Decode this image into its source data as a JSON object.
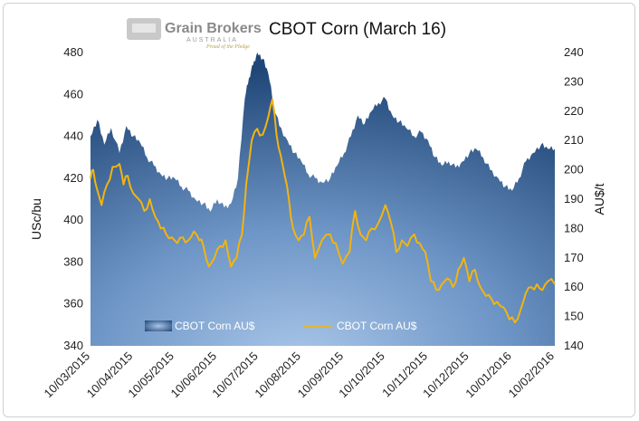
{
  "chart_data": {
    "type": "area+line",
    "title": "CBOT Corn (March 16)",
    "ylabel": "USc/bu",
    "y2label": "AU$/t",
    "ylim": [
      340,
      480
    ],
    "y2lim": [
      140,
      240
    ],
    "yticks": [
      340,
      360,
      380,
      400,
      420,
      440,
      460,
      480
    ],
    "y2ticks": [
      140,
      150,
      160,
      170,
      180,
      190,
      200,
      210,
      220,
      230,
      240
    ],
    "xticks": [
      "10/03/2015",
      "10/04/2015",
      "10/05/2015",
      "10/06/2015",
      "10/07/2015",
      "10/08/2015",
      "10/09/2015",
      "10/10/2015",
      "10/11/2015",
      "10/12/2015",
      "10/01/2016",
      "10/02/2016"
    ],
    "legend": {
      "position": "bottom-inside",
      "entries": [
        "CBOT Corn AU$",
        "CBOT Corn AU$"
      ]
    },
    "series": [
      {
        "name": "CBOT Corn AU$",
        "axis": "left",
        "kind": "area",
        "color": "#2e5f94",
        "points": [
          [
            "10/03/2015",
            440
          ],
          [
            "15/03/2015",
            448
          ],
          [
            "20/03/2015",
            436
          ],
          [
            "25/03/2015",
            444
          ],
          [
            "31/03/2015",
            432
          ],
          [
            "05/04/2015",
            445
          ],
          [
            "10/04/2015",
            440
          ],
          [
            "15/04/2015",
            437
          ],
          [
            "20/04/2015",
            430
          ],
          [
            "25/04/2015",
            426
          ],
          [
            "30/04/2015",
            422
          ],
          [
            "05/05/2015",
            420
          ],
          [
            "10/05/2015",
            420
          ],
          [
            "15/05/2015",
            416
          ],
          [
            "20/05/2015",
            414
          ],
          [
            "25/05/2015",
            410
          ],
          [
            "31/05/2015",
            408
          ],
          [
            "05/06/2015",
            404
          ],
          [
            "10/06/2015",
            410
          ],
          [
            "15/06/2015",
            406
          ],
          [
            "20/06/2015",
            408
          ],
          [
            "25/06/2015",
            420
          ],
          [
            "30/06/2015",
            458
          ],
          [
            "03/07/2015",
            468
          ],
          [
            "06/07/2015",
            474
          ],
          [
            "09/07/2015",
            480
          ],
          [
            "13/07/2015",
            477
          ],
          [
            "17/07/2015",
            470
          ],
          [
            "21/07/2015",
            455
          ],
          [
            "25/07/2015",
            445
          ],
          [
            "31/07/2015",
            438
          ],
          [
            "05/08/2015",
            432
          ],
          [
            "10/08/2015",
            428
          ],
          [
            "15/08/2015",
            422
          ],
          [
            "20/08/2015",
            420
          ],
          [
            "25/08/2015",
            418
          ],
          [
            "31/08/2015",
            420
          ],
          [
            "05/09/2015",
            426
          ],
          [
            "10/09/2015",
            432
          ],
          [
            "15/09/2015",
            440
          ],
          [
            "20/09/2015",
            450
          ],
          [
            "25/09/2015",
            446
          ],
          [
            "30/09/2015",
            452
          ],
          [
            "05/10/2015",
            456
          ],
          [
            "10/10/2015",
            458
          ],
          [
            "15/10/2015",
            450
          ],
          [
            "20/10/2015",
            447
          ],
          [
            "25/10/2015",
            444
          ],
          [
            "31/10/2015",
            440
          ],
          [
            "05/11/2015",
            442
          ],
          [
            "10/11/2015",
            438
          ],
          [
            "15/11/2015",
            430
          ],
          [
            "20/11/2015",
            426
          ],
          [
            "25/11/2015",
            428
          ],
          [
            "30/11/2015",
            425
          ],
          [
            "05/12/2015",
            428
          ],
          [
            "10/12/2015",
            432
          ],
          [
            "15/12/2015",
            434
          ],
          [
            "20/12/2015",
            430
          ],
          [
            "25/12/2015",
            424
          ],
          [
            "31/12/2015",
            420
          ],
          [
            "05/01/2016",
            416
          ],
          [
            "10/01/2016",
            414
          ],
          [
            "15/01/2016",
            420
          ],
          [
            "20/01/2016",
            428
          ],
          [
            "25/01/2016",
            432
          ],
          [
            "31/01/2016",
            436
          ],
          [
            "05/02/2016",
            434
          ],
          [
            "10/02/2016",
            434
          ]
        ]
      },
      {
        "name": "CBOT Corn AU$",
        "axis": "right",
        "kind": "line",
        "color": "#f2b411",
        "points": [
          [
            "10/03/2015",
            197
          ],
          [
            "12/03/2015",
            200
          ],
          [
            "15/03/2015",
            193
          ],
          [
            "18/03/2015",
            188
          ],
          [
            "22/03/2015",
            195
          ],
          [
            "26/03/2015",
            201
          ],
          [
            "31/03/2015",
            202
          ],
          [
            "03/04/2015",
            195
          ],
          [
            "06/04/2015",
            198
          ],
          [
            "10/04/2015",
            192
          ],
          [
            "14/04/2015",
            190
          ],
          [
            "18/04/2015",
            186
          ],
          [
            "22/04/2015",
            190
          ],
          [
            "26/04/2015",
            184
          ],
          [
            "30/04/2015",
            180
          ],
          [
            "04/05/2015",
            178
          ],
          [
            "08/05/2015",
            177
          ],
          [
            "12/05/2015",
            175
          ],
          [
            "16/05/2015",
            177
          ],
          [
            "20/05/2015",
            176
          ],
          [
            "24/05/2015",
            179
          ],
          [
            "28/05/2015",
            176
          ],
          [
            "31/05/2015",
            174
          ],
          [
            "04/06/2015",
            167
          ],
          [
            "08/06/2015",
            170
          ],
          [
            "12/06/2015",
            174
          ],
          [
            "16/06/2015",
            176
          ],
          [
            "20/06/2015",
            167
          ],
          [
            "24/06/2015",
            170
          ],
          [
            "28/06/2015",
            178
          ],
          [
            "01/07/2015",
            195
          ],
          [
            "05/07/2015",
            210
          ],
          [
            "09/07/2015",
            214
          ],
          [
            "13/07/2015",
            212
          ],
          [
            "17/07/2015",
            218
          ],
          [
            "20/07/2015",
            224
          ],
          [
            "23/07/2015",
            212
          ],
          [
            "26/07/2015",
            205
          ],
          [
            "29/07/2015",
            198
          ],
          [
            "01/08/2015",
            190
          ],
          [
            "04/08/2015",
            180
          ],
          [
            "08/08/2015",
            176
          ],
          [
            "12/08/2015",
            178
          ],
          [
            "16/08/2015",
            184
          ],
          [
            "20/08/2015",
            170
          ],
          [
            "25/08/2015",
            176
          ],
          [
            "31/08/2015",
            178
          ],
          [
            "04/09/2015",
            175
          ],
          [
            "09/09/2015",
            168
          ],
          [
            "14/09/2015",
            172
          ],
          [
            "18/09/2015",
            186
          ],
          [
            "22/09/2015",
            178
          ],
          [
            "26/09/2015",
            176
          ],
          [
            "30/09/2015",
            180
          ],
          [
            "05/10/2015",
            182
          ],
          [
            "10/10/2015",
            188
          ],
          [
            "14/10/2015",
            182
          ],
          [
            "18/10/2015",
            172
          ],
          [
            "22/10/2015",
            176
          ],
          [
            "26/10/2015",
            174
          ],
          [
            "31/10/2015",
            178
          ],
          [
            "04/11/2015",
            175
          ],
          [
            "08/11/2015",
            172
          ],
          [
            "12/11/2015",
            162
          ],
          [
            "16/11/2015",
            159
          ],
          [
            "20/11/2015",
            161
          ],
          [
            "24/11/2015",
            163
          ],
          [
            "28/11/2015",
            160
          ],
          [
            "02/12/2015",
            166
          ],
          [
            "06/12/2015",
            170
          ],
          [
            "10/12/2015",
            162
          ],
          [
            "14/12/2015",
            166
          ],
          [
            "18/12/2015",
            160
          ],
          [
            "22/12/2015",
            157
          ],
          [
            "26/12/2015",
            156
          ],
          [
            "30/12/2015",
            155
          ],
          [
            "04/01/2016",
            153
          ],
          [
            "08/01/2016",
            149
          ],
          [
            "12/01/2016",
            148
          ],
          [
            "16/01/2016",
            152
          ],
          [
            "20/01/2016",
            158
          ],
          [
            "24/01/2016",
            160
          ],
          [
            "28/01/2016",
            161
          ],
          [
            "01/02/2016",
            159
          ],
          [
            "05/02/2016",
            162
          ],
          [
            "10/02/2016",
            161
          ]
        ]
      }
    ]
  },
  "logo": {
    "name": "Grain Brokers",
    "sub": "AUSTRALIA",
    "tag": "Proud of the Pledge"
  },
  "colors": {
    "area_light": "#8fb3dc",
    "area_dark": "#20477a",
    "line": "#f2b411"
  }
}
